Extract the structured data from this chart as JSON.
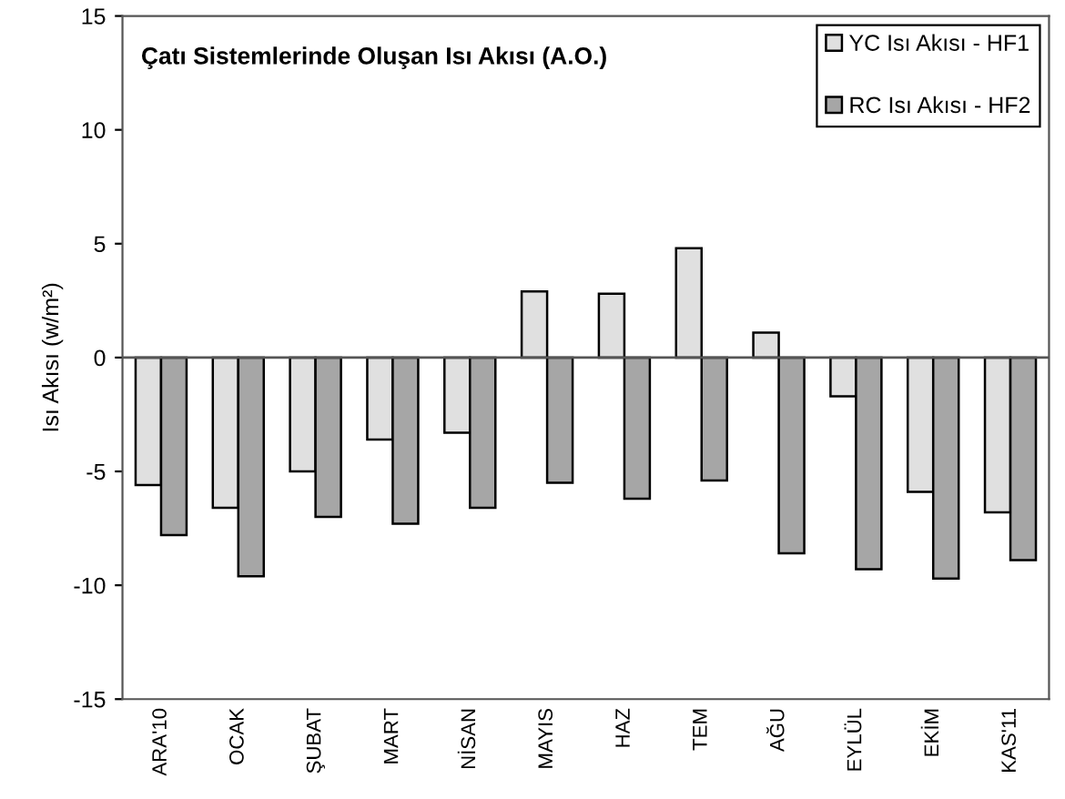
{
  "chart_data": {
    "type": "bar",
    "title": "Çatı Sistemlerinde Oluşan Isı Akısı (A.O.)",
    "ylabel": "Isı Akısı (w/m²)",
    "categories": [
      "ARA'10",
      "OCAK",
      "ŞUBAT",
      "MART",
      "NİSAN",
      "MAYIS",
      "HAZ",
      "TEM",
      "AĞU",
      "EYLÜL",
      "EKİM",
      "KAS'11"
    ],
    "series": [
      {
        "name": "YC Isı Akısı - HF1",
        "color": "#e0e0e0",
        "values": [
          -5.6,
          -6.6,
          -5.0,
          -3.6,
          -3.3,
          2.9,
          2.8,
          4.8,
          1.1,
          -1.7,
          -5.9,
          -6.8
        ]
      },
      {
        "name": "RC Isı Akısı - HF2",
        "color": "#a6a6a6",
        "values": [
          -7.8,
          -9.6,
          -7.0,
          -7.3,
          -6.6,
          -5.5,
          -6.2,
          -5.4,
          -8.6,
          -9.3,
          -9.7,
          -8.9
        ]
      }
    ],
    "ylim": [
      -15,
      15
    ],
    "yticks": [
      -15,
      -10,
      -5,
      0,
      5,
      10,
      15
    ],
    "ref_lines": [
      {
        "axis": "y",
        "value": 0,
        "color": "#555555"
      }
    ],
    "legend": "top right"
  }
}
